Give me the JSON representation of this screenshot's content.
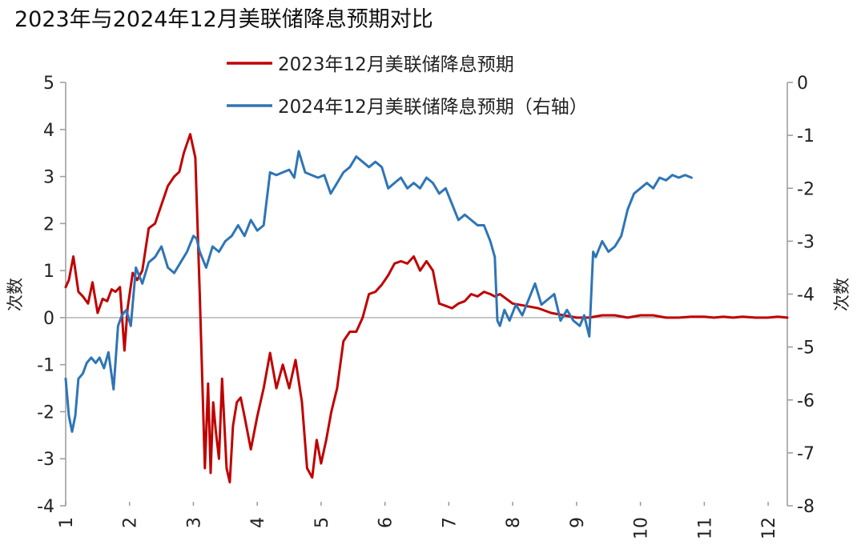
{
  "chart_data": {
    "type": "line",
    "title": "2023年与2024年12月美联储降息预期对比",
    "ylabel_left": "次数",
    "ylabel_right": "次数",
    "x_ticks": [
      "1",
      "2",
      "3",
      "4",
      "5",
      "6",
      "7",
      "8",
      "9",
      "10",
      "11",
      "12"
    ],
    "xlim": [
      1,
      12.3
    ],
    "ylim_left": [
      -4,
      5
    ],
    "ylim_right": [
      -8,
      0
    ],
    "y_ticks_left": [
      5,
      4,
      3,
      2,
      1,
      0,
      -1,
      -2,
      -3,
      -4
    ],
    "y_ticks_right": [
      0,
      -1,
      -2,
      -3,
      -4,
      -5,
      -6,
      -7,
      -8
    ],
    "grid": false,
    "legend_position": "top",
    "series": [
      {
        "name": "2023年12月美联储降息预期",
        "axis": "left",
        "color": "#c00000",
        "x": [
          1.0,
          1.05,
          1.12,
          1.2,
          1.27,
          1.35,
          1.42,
          1.5,
          1.58,
          1.65,
          1.72,
          1.78,
          1.85,
          1.92,
          1.97,
          2.05,
          2.12,
          2.2,
          2.3,
          2.4,
          2.5,
          2.6,
          2.7,
          2.78,
          2.85,
          2.95,
          3.03,
          3.1,
          3.18,
          3.23,
          3.27,
          3.31,
          3.35,
          3.4,
          3.45,
          3.52,
          3.57,
          3.62,
          3.68,
          3.74,
          3.8,
          3.9,
          4.0,
          4.1,
          4.2,
          4.3,
          4.4,
          4.5,
          4.6,
          4.7,
          4.78,
          4.86,
          4.93,
          5.0,
          5.08,
          5.16,
          5.25,
          5.35,
          5.45,
          5.55,
          5.65,
          5.75,
          5.85,
          5.95,
          6.05,
          6.15,
          6.25,
          6.35,
          6.45,
          6.55,
          6.65,
          6.75,
          6.85,
          6.95,
          7.05,
          7.15,
          7.25,
          7.35,
          7.45,
          7.55,
          7.65,
          7.72,
          7.8,
          7.9,
          8.0,
          8.2,
          8.4,
          8.6,
          8.8,
          9.0,
          9.2,
          9.4,
          9.6,
          9.8,
          10.0,
          10.2,
          10.4,
          10.6,
          10.8,
          11.0,
          11.15,
          11.3,
          11.45,
          11.6,
          11.8,
          12.0,
          12.15,
          12.3
        ],
        "values": [
          0.65,
          0.8,
          1.3,
          0.55,
          0.45,
          0.3,
          0.75,
          0.1,
          0.4,
          0.35,
          0.6,
          0.55,
          0.65,
          -0.7,
          0.2,
          0.95,
          0.8,
          1.0,
          1.9,
          2.0,
          2.4,
          2.8,
          3.0,
          3.1,
          3.5,
          3.9,
          3.4,
          0.5,
          -3.2,
          -1.4,
          -3.3,
          -1.8,
          -2.4,
          -3.0,
          -1.3,
          -3.2,
          -3.5,
          -2.3,
          -1.8,
          -1.7,
          -2.1,
          -2.8,
          -2.1,
          -1.5,
          -0.75,
          -1.5,
          -1.0,
          -1.5,
          -0.9,
          -1.8,
          -3.2,
          -3.4,
          -2.6,
          -3.1,
          -2.6,
          -2.0,
          -1.5,
          -0.5,
          -0.3,
          -0.3,
          0.0,
          0.5,
          0.55,
          0.7,
          0.9,
          1.15,
          1.2,
          1.15,
          1.3,
          1.0,
          1.2,
          1.0,
          0.3,
          0.25,
          0.2,
          0.3,
          0.35,
          0.5,
          0.45,
          0.55,
          0.5,
          0.45,
          0.5,
          0.4,
          0.3,
          0.25,
          0.2,
          0.1,
          0.05,
          0.0,
          0.0,
          0.05,
          0.05,
          0.0,
          0.05,
          0.05,
          0.0,
          0.0,
          0.02,
          0.02,
          0.0,
          0.02,
          0.0,
          0.02,
          0.0,
          0.0,
          0.02,
          0.0
        ]
      },
      {
        "name": "2024年12月美联储降息预期（右轴）",
        "axis": "right",
        "color": "#2e75b6",
        "x": [
          1.0,
          1.05,
          1.1,
          1.15,
          1.2,
          1.27,
          1.33,
          1.4,
          1.47,
          1.53,
          1.6,
          1.67,
          1.75,
          1.82,
          1.88,
          1.95,
          2.02,
          2.1,
          2.2,
          2.3,
          2.4,
          2.5,
          2.6,
          2.7,
          2.8,
          2.9,
          3.0,
          3.05,
          3.1,
          3.2,
          3.3,
          3.4,
          3.5,
          3.6,
          3.7,
          3.8,
          3.9,
          4.0,
          4.1,
          4.2,
          4.3,
          4.4,
          4.5,
          4.58,
          4.65,
          4.75,
          4.85,
          4.95,
          5.05,
          5.15,
          5.25,
          5.35,
          5.45,
          5.55,
          5.65,
          5.75,
          5.85,
          5.95,
          6.05,
          6.15,
          6.25,
          6.35,
          6.45,
          6.55,
          6.65,
          6.75,
          6.85,
          6.95,
          7.05,
          7.15,
          7.25,
          7.35,
          7.45,
          7.55,
          7.65,
          7.72,
          7.76,
          7.8,
          7.87,
          7.95,
          8.05,
          8.15,
          8.25,
          8.35,
          8.45,
          8.55,
          8.65,
          8.75,
          8.85,
          8.95,
          9.05,
          9.12,
          9.2,
          9.26,
          9.3,
          9.4,
          9.5,
          9.6,
          9.7,
          9.8,
          9.9,
          10.0,
          10.1,
          10.2,
          10.3,
          10.4,
          10.5,
          10.6,
          10.7,
          10.8
        ],
        "values": [
          -5.6,
          -6.3,
          -6.6,
          -6.3,
          -5.6,
          -5.5,
          -5.3,
          -5.2,
          -5.3,
          -5.2,
          -5.4,
          -5.1,
          -5.8,
          -4.6,
          -4.4,
          -4.3,
          -4.6,
          -3.5,
          -3.8,
          -3.4,
          -3.3,
          -3.1,
          -3.5,
          -3.6,
          -3.4,
          -3.2,
          -2.9,
          -2.95,
          -3.2,
          -3.5,
          -3.1,
          -3.2,
          -3.0,
          -2.9,
          -2.7,
          -2.9,
          -2.6,
          -2.8,
          -2.7,
          -1.7,
          -1.75,
          -1.7,
          -1.65,
          -1.8,
          -1.3,
          -1.7,
          -1.75,
          -1.8,
          -1.75,
          -2.1,
          -1.9,
          -1.7,
          -1.6,
          -1.4,
          -1.5,
          -1.6,
          -1.5,
          -1.6,
          -2.0,
          -1.9,
          -1.8,
          -2.0,
          -1.9,
          -2.0,
          -1.8,
          -1.9,
          -2.1,
          -2.0,
          -2.3,
          -2.6,
          -2.5,
          -2.6,
          -2.7,
          -2.7,
          -3.0,
          -3.3,
          -4.5,
          -4.6,
          -4.3,
          -4.5,
          -4.2,
          -4.4,
          -4.1,
          -3.8,
          -4.2,
          -4.1,
          -4.0,
          -4.5,
          -4.3,
          -4.5,
          -4.6,
          -4.4,
          -4.8,
          -3.2,
          -3.3,
          -3.0,
          -3.2,
          -3.1,
          -2.9,
          -2.4,
          -2.1,
          -2.0,
          -1.9,
          -2.0,
          -1.8,
          -1.85,
          -1.75,
          -1.8,
          -1.75,
          -1.8
        ]
      }
    ]
  }
}
